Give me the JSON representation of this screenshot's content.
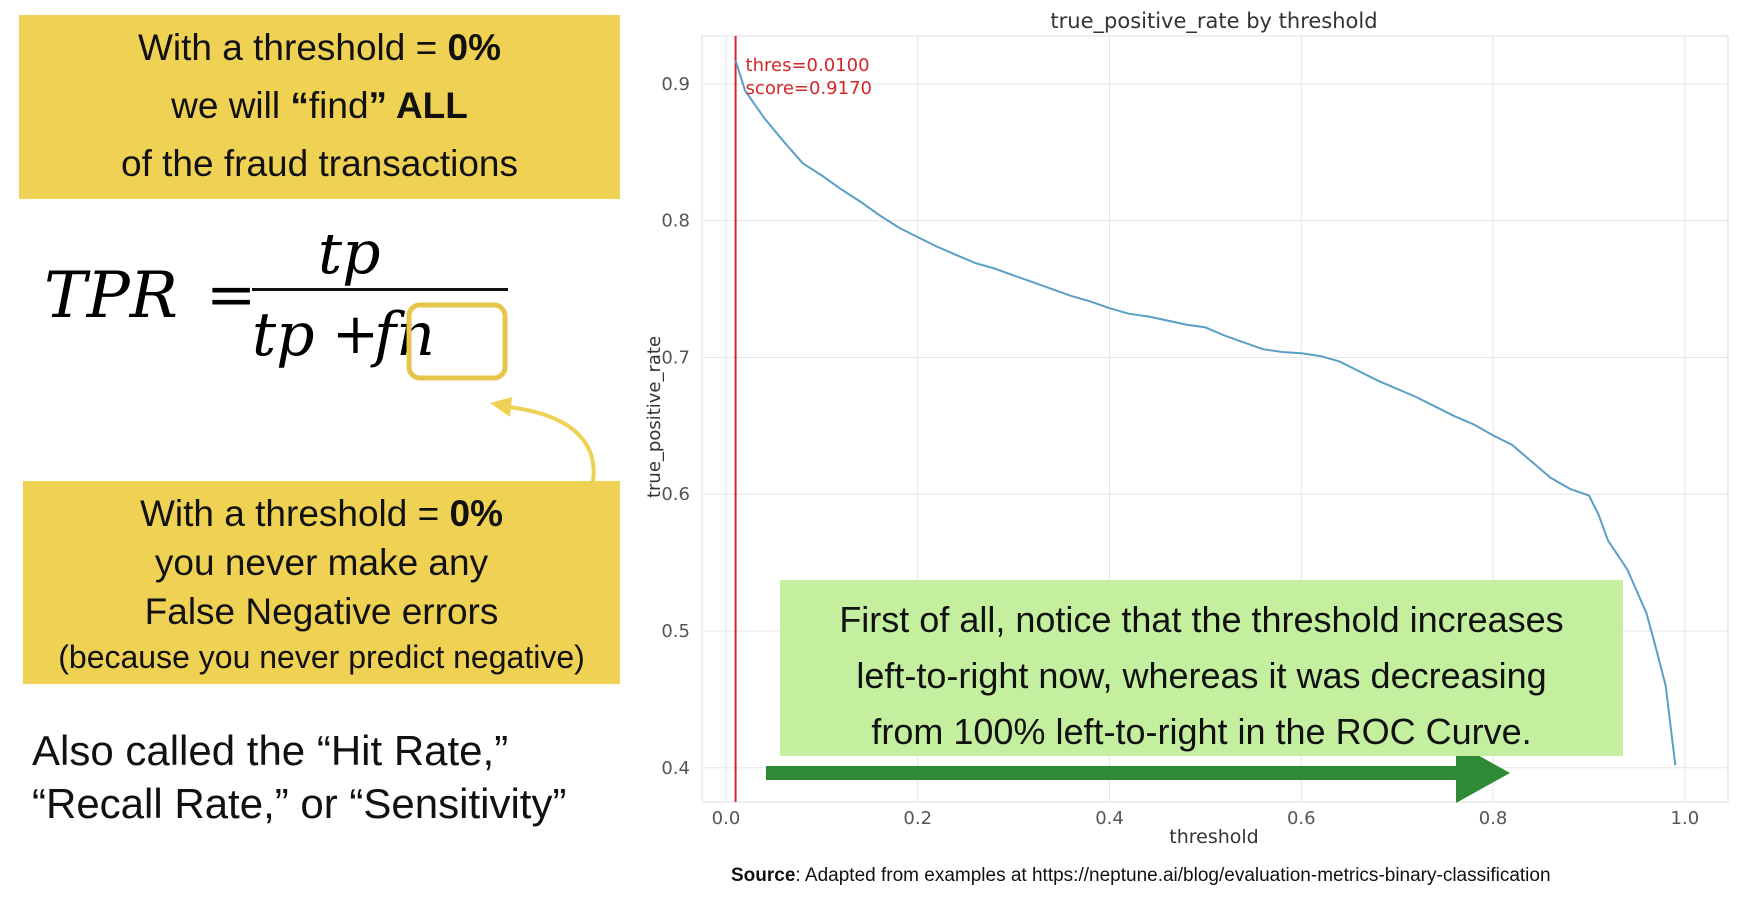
{
  "callout_top": {
    "line1_prefix": "With a threshold = ",
    "line1_bold": "0%",
    "line2_prefix": "we will ",
    "line2_bold_open": "“",
    "line2_find": "find",
    "line2_bold_close": "” ALL",
    "line3": "of the fraud transactions"
  },
  "formula": {
    "lhs": "TPR",
    "equals": "=",
    "numerator": "tp",
    "denominator_left": "tp",
    "plus": "+",
    "denominator_right": "fn"
  },
  "callout_bottom": {
    "line1_prefix": "With a threshold = ",
    "line1_bold": "0%",
    "line2": "you never make any",
    "line3": "False Negative errors",
    "line4": "(because you never predict negative)"
  },
  "also_called": {
    "line1": "Also called the “Hit Rate,”",
    "line2": "“Recall Rate,” or “Sensitivity”"
  },
  "green_note": {
    "line1": "First of all, notice that the threshold increases",
    "line2": "left-to-right now, whereas it was decreasing",
    "line3": "from 100% left-to-right in the ROC Curve."
  },
  "source": {
    "label": "Source",
    "text": ": Adapted from examples at https://neptune.ai/blog/evaluation-metrics-binary-classification"
  },
  "colors": {
    "callout": "#efd153",
    "green_note": "#c3ef9f",
    "arrow": "#2f8a36",
    "curve": "#5b9ec6",
    "marker": "#d2262a",
    "highlight_box": "#e7c54b"
  },
  "chart_data": {
    "type": "line",
    "title": "true_positive_rate by threshold",
    "xlabel": "threshold",
    "ylabel": "true_positive_rate",
    "xlim": [
      -0.025,
      1.045
    ],
    "ylim": [
      0.375,
      0.935
    ],
    "xticks": [
      0.0,
      0.2,
      0.4,
      0.6,
      0.8,
      1.0
    ],
    "xtick_labels": [
      "0.0",
      "0.2",
      "0.4",
      "0.6",
      "0.8",
      "1.0"
    ],
    "yticks": [
      0.4,
      0.5,
      0.6,
      0.7,
      0.8,
      0.9
    ],
    "ytick_labels": [
      "0.4",
      "0.5",
      "0.6",
      "0.7",
      "0.8",
      "0.9"
    ],
    "grid": true,
    "series": [
      {
        "x": [
          0.01,
          0.02,
          0.04,
          0.06,
          0.08,
          0.1,
          0.12,
          0.14,
          0.16,
          0.18,
          0.2,
          0.22,
          0.24,
          0.26,
          0.28,
          0.3,
          0.32,
          0.34,
          0.36,
          0.38,
          0.4,
          0.42,
          0.44,
          0.46,
          0.48,
          0.5,
          0.52,
          0.54,
          0.56,
          0.58,
          0.6,
          0.62,
          0.64,
          0.66,
          0.68,
          0.7,
          0.72,
          0.74,
          0.76,
          0.78,
          0.8,
          0.82,
          0.84,
          0.86,
          0.88,
          0.9,
          0.91,
          0.92,
          0.94,
          0.96,
          0.97,
          0.98,
          0.99
        ],
        "y": [
          0.917,
          0.895,
          0.875,
          0.858,
          0.842,
          0.833,
          0.823,
          0.814,
          0.804,
          0.795,
          0.788,
          0.781,
          0.775,
          0.769,
          0.765,
          0.76,
          0.755,
          0.75,
          0.745,
          0.741,
          0.736,
          0.732,
          0.73,
          0.727,
          0.724,
          0.722,
          0.716,
          0.711,
          0.706,
          0.704,
          0.703,
          0.701,
          0.697,
          0.69,
          0.683,
          0.677,
          0.671,
          0.664,
          0.657,
          0.651,
          0.643,
          0.636,
          0.624,
          0.612,
          0.604,
          0.599,
          0.585,
          0.566,
          0.545,
          0.513,
          0.487,
          0.46,
          0.402
        ]
      }
    ],
    "annotation": {
      "x": 0.01,
      "line1": "thres=0.0100",
      "line2": "score=0.9170"
    }
  }
}
